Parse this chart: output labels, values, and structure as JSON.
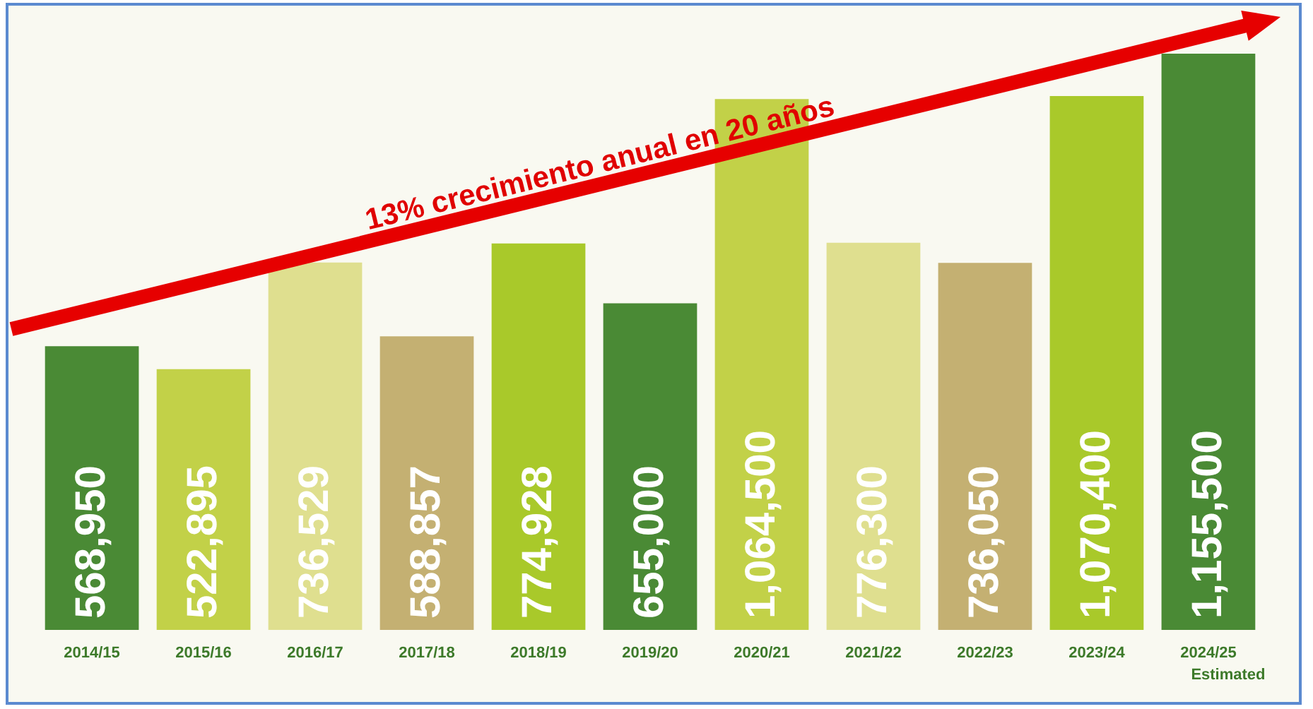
{
  "chart_data": {
    "type": "bar",
    "categories": [
      "2014/15",
      "2015/16",
      "2016/17",
      "2017/18",
      "2018/19",
      "2019/20",
      "2020/21",
      "2021/22",
      "2022/23",
      "2023/24",
      "2024/25"
    ],
    "values": [
      568950,
      522895,
      736529,
      588857,
      774928,
      655000,
      1064500,
      776300,
      736050,
      1070400,
      1155500
    ],
    "colors": [
      "#4a8a35",
      "#c2d148",
      "#dfdf8f",
      "#c4b072",
      "#a9c92a",
      "#4a8a35",
      "#c2d148",
      "#dfdf8f",
      "#c4b072",
      "#a9c92a",
      "#4a8a35"
    ],
    "value_labels": [
      "568,950",
      "522,895",
      "736,529",
      "588,857",
      "774,928",
      "655,000",
      "1,064,500",
      "776,300",
      "736,050",
      "1,070,400",
      "1,155,500"
    ],
    "tick_labels": "x",
    "annotations": [
      "13% crecimiento anual en 20 años",
      "Estimated"
    ]
  }
}
